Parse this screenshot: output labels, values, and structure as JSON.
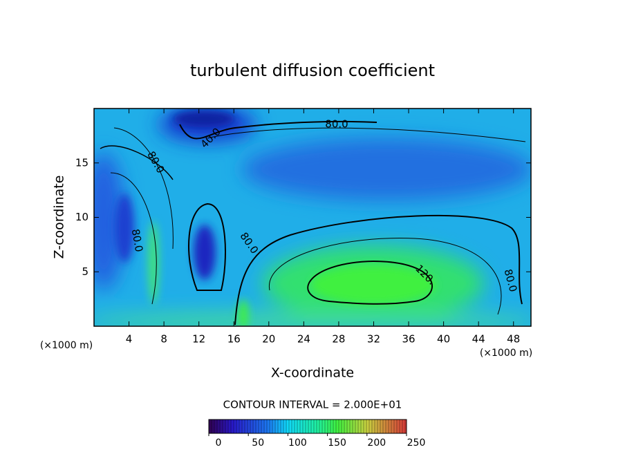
{
  "chart_data": {
    "type": "contour",
    "title": "turbulent diffusion coefficient",
    "xlabel": "X-coordinate",
    "ylabel": "Z-coordinate",
    "x_unit": "(×1000 m)",
    "y_unit": "(×1000 m)",
    "xlim": [
      0,
      50
    ],
    "ylim": [
      0,
      20
    ],
    "xticks": [
      4,
      8,
      12,
      16,
      20,
      24,
      28,
      32,
      36,
      40,
      44,
      48
    ],
    "yticks": [
      5,
      10,
      15
    ],
    "contour_labels": [
      "80.0",
      "40.0",
      "80.0",
      "80.0",
      "80.0",
      "120.",
      "80.0"
    ],
    "contour_interval": "CONTOUR INTERVAL = 2.000E+01",
    "colorbar": {
      "lim": [
        0,
        250
      ],
      "ticks": [
        0,
        50,
        100,
        150,
        200,
        250
      ]
    }
  }
}
